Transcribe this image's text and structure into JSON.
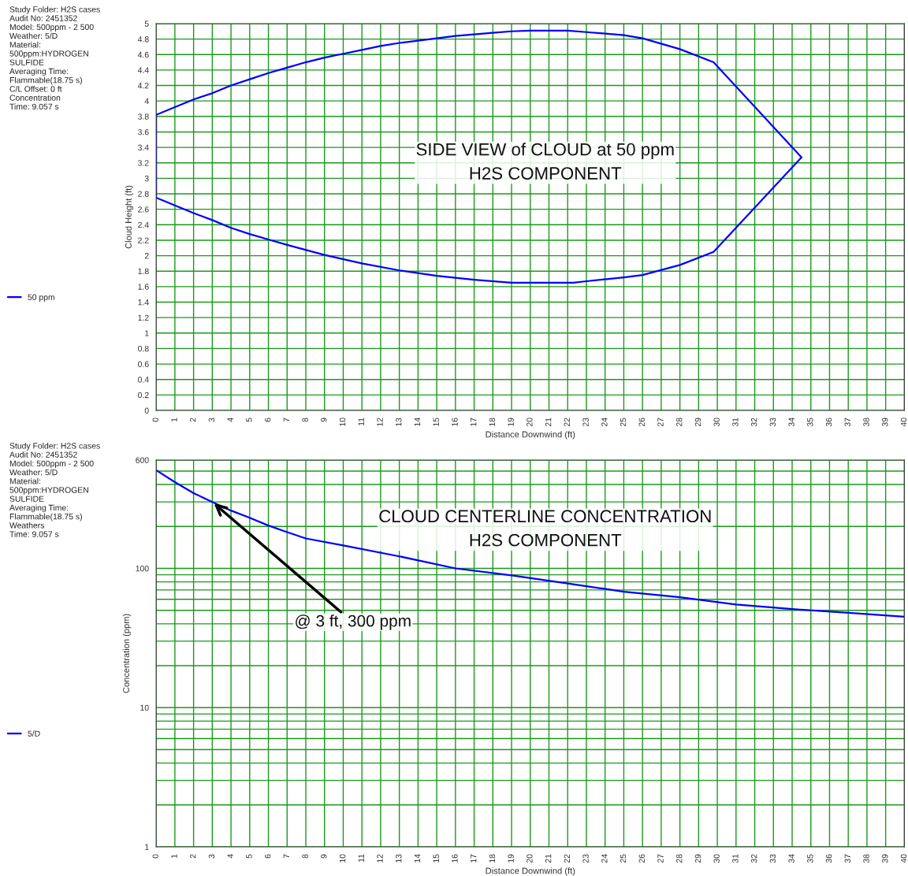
{
  "chart_data": [
    {
      "type": "line",
      "title": "SIDE VIEW of CLOUD at 50 ppm\nH2S COMPONENT",
      "xlabel": "Distance Downwind (ft)",
      "ylabel": "Cloud Height (ft)",
      "annotations": [
        "Study Folder: H2S cases\nAudit No: 2451352\nModel: 500ppm - 2 500\nWeather: 5/D\nMaterial:\n500ppm:HYDROGEN\nSULFIDE\nAveraging Time:\nFlammable(18.75 s)\nC/L Offset: 0 ft\nConcentration\nTime: 9.057 s"
      ],
      "series": [
        {
          "name": "50 ppm",
          "color": "#0000ff",
          "x": [
            0,
            1,
            2,
            3,
            4,
            5,
            6,
            7,
            8,
            9,
            10,
            11,
            12,
            13,
            14,
            15,
            16,
            17,
            18,
            19,
            20,
            22,
            23,
            25,
            26,
            28,
            29.8,
            34.5
          ],
          "values": [
            3.82,
            3.92,
            4.02,
            4.1,
            4.2,
            4.28,
            4.36,
            4.43,
            4.5,
            4.56,
            4.61,
            4.66,
            4.71,
            4.75,
            4.78,
            4.81,
            4.84,
            4.86,
            4.88,
            4.9,
            4.91,
            4.91,
            4.89,
            4.85,
            4.81,
            4.67,
            4.5,
            3.27
          ]
        },
        {
          "color": "#0000ff",
          "x": [
            0,
            0,
            1,
            2,
            3,
            4,
            5,
            6,
            7,
            9,
            11,
            13,
            15,
            17,
            19,
            22.3,
            23,
            25,
            26,
            28,
            29.8,
            34.5
          ],
          "values": [
            3.82,
            2.75,
            2.65,
            2.55,
            2.46,
            2.36,
            2.28,
            2.21,
            2.14,
            2.01,
            1.9,
            1.81,
            1.74,
            1.69,
            1.65,
            1.65,
            1.67,
            1.72,
            1.75,
            1.88,
            2.05,
            3.27
          ]
        }
      ],
      "xlim": [
        0,
        40
      ],
      "xticks": [
        0,
        1,
        2,
        3,
        4,
        5,
        6,
        7,
        8,
        9,
        10,
        11,
        12,
        13,
        14,
        15,
        16,
        17,
        18,
        19,
        20,
        21,
        22,
        23,
        24,
        25,
        26,
        27,
        28,
        29,
        30,
        31,
        32,
        33,
        34,
        35,
        36,
        37,
        38,
        39,
        40
      ],
      "ylim": [
        0,
        5
      ],
      "yticks": [
        0,
        0.2,
        0.4,
        0.6,
        0.8,
        1,
        1.2,
        1.4,
        1.6,
        1.8,
        2,
        2.2,
        2.4,
        2.6,
        2.8,
        3,
        3.2,
        3.4,
        3.6,
        3.8,
        4,
        4.2,
        4.4,
        4.6,
        4.8,
        5
      ],
      "grid": true,
      "legend": "left",
      "marker": "none",
      "line_style": "solid"
    },
    {
      "type": "line",
      "title": "CLOUD CENTERLINE CONCENTRATION\nH2S COMPONENT",
      "xlabel": "Distance Downwind (ft)",
      "ylabel": "Concentration (ppm)",
      "annotations": [
        "Study Folder: H2S cases\nAudit No: 2451352\nModel: 500ppm - 2 500\nWeather: 5/D\nMaterial:\n500ppm:HYDROGEN\nSULFIDE\nAveraging Time:\nFlammable(18.75 s)\nWeathers\nTime: 9.057 s",
        {
          "text": "@ 3 ft, 300 ppm",
          "x": 3,
          "y": 300
        }
      ],
      "series": [
        {
          "name": "5/D",
          "color": "#0000ff",
          "x": [
            0,
            1,
            2,
            3,
            4,
            5,
            6,
            7,
            8,
            10,
            13,
            16,
            19,
            22,
            25,
            28,
            31,
            34,
            37,
            40
          ],
          "values": [
            507,
            416,
            347,
            300,
            260,
            231,
            203,
            182,
            164,
            146,
            122,
            100,
            89,
            78,
            68,
            62,
            55,
            51,
            48,
            45
          ]
        }
      ],
      "xlim": [
        0,
        40
      ],
      "xticks": [
        0,
        1,
        2,
        3,
        4,
        5,
        6,
        7,
        8,
        9,
        10,
        11,
        12,
        13,
        14,
        15,
        16,
        17,
        18,
        19,
        20,
        21,
        22,
        23,
        24,
        25,
        26,
        27,
        28,
        29,
        30,
        31,
        32,
        33,
        34,
        35,
        36,
        37,
        38,
        39,
        40
      ],
      "log": "y",
      "ylim": [
        1,
        600
      ],
      "yticks": [
        1,
        10,
        100,
        600
      ],
      "grid": true,
      "legend": "left",
      "marker": "none",
      "line_style": "solid"
    }
  ]
}
